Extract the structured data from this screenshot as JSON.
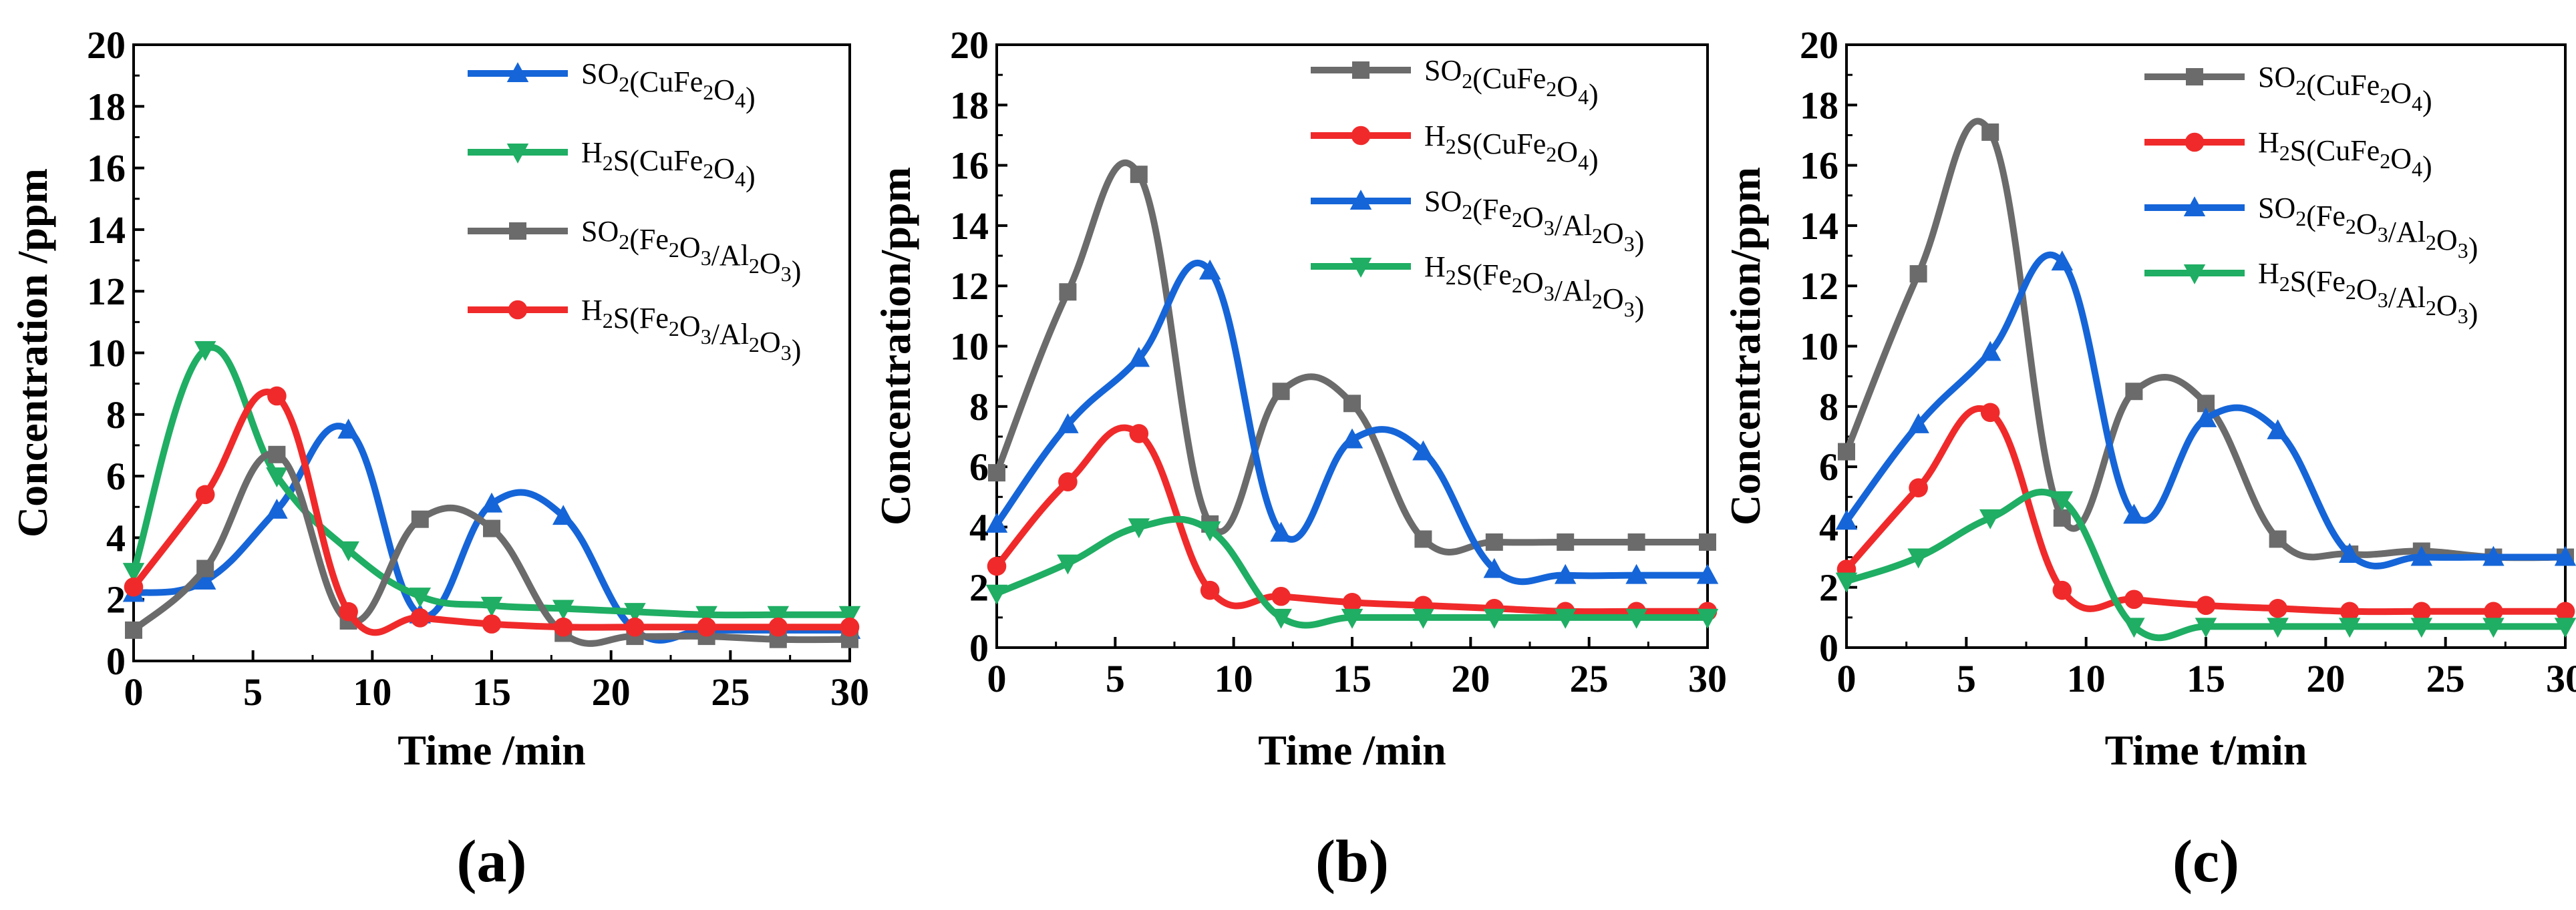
{
  "chart_data": [
    {
      "type": "line",
      "panel_label": "(a)",
      "xlabel": "Time /min",
      "ylabel": "Concentration /ppm",
      "xlim": [
        0,
        30
      ],
      "ylim": [
        0,
        20
      ],
      "xticks": [
        0,
        5,
        10,
        15,
        20,
        25,
        30
      ],
      "yticks": [
        0,
        2,
        4,
        6,
        8,
        10,
        12,
        14,
        16,
        18,
        20
      ],
      "legend_position": "top-right",
      "series": [
        {
          "name": "SO₂(CuFe₂O₄)",
          "color": "#1565d8",
          "marker": "triangle-up",
          "x": [
            0,
            3,
            6,
            9,
            12,
            15,
            18,
            21,
            24,
            27,
            30
          ],
          "y": [
            2.2,
            2.6,
            4.9,
            7.5,
            1.5,
            5.1,
            4.7,
            1.0,
            1.0,
            1.0,
            1.0
          ]
        },
        {
          "name": "H₂S(CuFe₂O₄)",
          "color": "#1fae63",
          "marker": "triangle-down",
          "x": [
            0,
            3,
            6,
            9,
            12,
            15,
            18,
            21,
            24,
            27,
            30
          ],
          "y": [
            2.9,
            10.1,
            6.0,
            3.6,
            2.1,
            1.8,
            1.7,
            1.6,
            1.5,
            1.5,
            1.5
          ]
        },
        {
          "name": "SO₂(Fe₂O₃/Al₂O₃)",
          "color": "#6b6b6b",
          "marker": "square",
          "x": [
            0,
            3,
            6,
            9,
            12,
            15,
            18,
            21,
            24,
            27,
            30
          ],
          "y": [
            1.0,
            3.0,
            6.7,
            1.3,
            4.6,
            4.3,
            0.9,
            0.8,
            0.8,
            0.7,
            0.7
          ]
        },
        {
          "name": "H₂S(Fe₂O₃/Al₂O₃)",
          "color": "#f02a2a",
          "marker": "circle",
          "x": [
            0,
            3,
            6,
            9,
            12,
            15,
            18,
            21,
            24,
            27,
            30
          ],
          "y": [
            2.4,
            5.4,
            8.6,
            1.6,
            1.4,
            1.2,
            1.1,
            1.1,
            1.1,
            1.1,
            1.1
          ]
        }
      ]
    },
    {
      "type": "line",
      "panel_label": "(b)",
      "xlabel": "Time /min",
      "ylabel": "Concentration/ppm",
      "xlim": [
        0,
        30
      ],
      "ylim": [
        0,
        20
      ],
      "xticks": [
        0,
        5,
        10,
        15,
        20,
        25,
        30
      ],
      "yticks": [
        0,
        2,
        4,
        6,
        8,
        10,
        12,
        14,
        16,
        18,
        20
      ],
      "legend_position": "top-right",
      "series": [
        {
          "name": "SO₂(CuFe₂O₄)",
          "color": "#6b6b6b",
          "marker": "square",
          "x": [
            0,
            3,
            6,
            9,
            12,
            15,
            18,
            21,
            24,
            27,
            30
          ],
          "y": [
            5.8,
            11.8,
            15.7,
            4.1,
            8.5,
            8.1,
            3.6,
            3.5,
            3.5,
            3.5,
            3.5
          ]
        },
        {
          "name": "H₂S(CuFe₂O₄)",
          "color": "#f02a2a",
          "marker": "circle",
          "x": [
            0,
            3,
            6,
            9,
            12,
            15,
            18,
            21,
            24,
            27,
            30
          ],
          "y": [
            2.7,
            5.5,
            7.1,
            1.9,
            1.7,
            1.5,
            1.4,
            1.3,
            1.2,
            1.2,
            1.2
          ]
        },
        {
          "name": "SO₂(Fe₂O₃/Al₂O₃)",
          "color": "#1565d8",
          "marker": "triangle-up",
          "x": [
            0,
            3,
            6,
            9,
            12,
            15,
            18,
            21,
            24,
            27,
            30
          ],
          "y": [
            4.1,
            7.4,
            9.6,
            12.5,
            3.8,
            6.9,
            6.5,
            2.6,
            2.4,
            2.4,
            2.4
          ]
        },
        {
          "name": "H₂S(Fe₂O₃/Al₂O₃)",
          "color": "#1fae63",
          "marker": "triangle-down",
          "x": [
            0,
            3,
            6,
            9,
            12,
            15,
            18,
            21,
            24,
            27,
            30
          ],
          "y": [
            1.8,
            2.8,
            4.0,
            3.9,
            1.0,
            1.0,
            1.0,
            1.0,
            1.0,
            1.0,
            1.0
          ]
        }
      ]
    },
    {
      "type": "line",
      "panel_label": "(c)",
      "xlabel": "Time t/min",
      "ylabel": "Concentration/ppm",
      "xlim": [
        0,
        30
      ],
      "ylim": [
        0,
        20
      ],
      "xticks": [
        0,
        5,
        10,
        15,
        20,
        25,
        30
      ],
      "yticks": [
        0,
        2,
        4,
        6,
        8,
        10,
        12,
        14,
        16,
        18,
        20
      ],
      "legend_position": "top-right",
      "series": [
        {
          "name": "SO₂(CuFe₂O₄)",
          "color": "#6b6b6b",
          "marker": "square",
          "x": [
            0,
            3,
            6,
            9,
            12,
            15,
            18,
            21,
            24,
            27,
            30
          ],
          "y": [
            6.5,
            12.4,
            17.1,
            4.3,
            8.5,
            8.1,
            3.6,
            3.1,
            3.2,
            3.0,
            3.0
          ]
        },
        {
          "name": "H₂S(CuFe₂O₄)",
          "color": "#f02a2a",
          "marker": "circle",
          "x": [
            0,
            3,
            6,
            9,
            12,
            15,
            18,
            21,
            24,
            27,
            30
          ],
          "y": [
            2.6,
            5.3,
            7.8,
            1.9,
            1.6,
            1.4,
            1.3,
            1.2,
            1.2,
            1.2,
            1.2
          ]
        },
        {
          "name": "SO₂(Fe₂O₃/Al₂O₃)",
          "color": "#1565d8",
          "marker": "triangle-up",
          "x": [
            0,
            3,
            6,
            9,
            12,
            15,
            18,
            21,
            24,
            27,
            30
          ],
          "y": [
            4.2,
            7.4,
            9.8,
            12.8,
            4.4,
            7.6,
            7.2,
            3.1,
            3.0,
            3.0,
            3.0
          ]
        },
        {
          "name": "H₂S(Fe₂O₃/Al₂O₃)",
          "color": "#1fae63",
          "marker": "triangle-down",
          "x": [
            0,
            3,
            6,
            9,
            12,
            15,
            18,
            21,
            24,
            27,
            30
          ],
          "y": [
            2.2,
            3.0,
            4.3,
            4.9,
            0.7,
            0.7,
            0.7,
            0.7,
            0.7,
            0.7,
            0.7
          ]
        }
      ]
    }
  ]
}
